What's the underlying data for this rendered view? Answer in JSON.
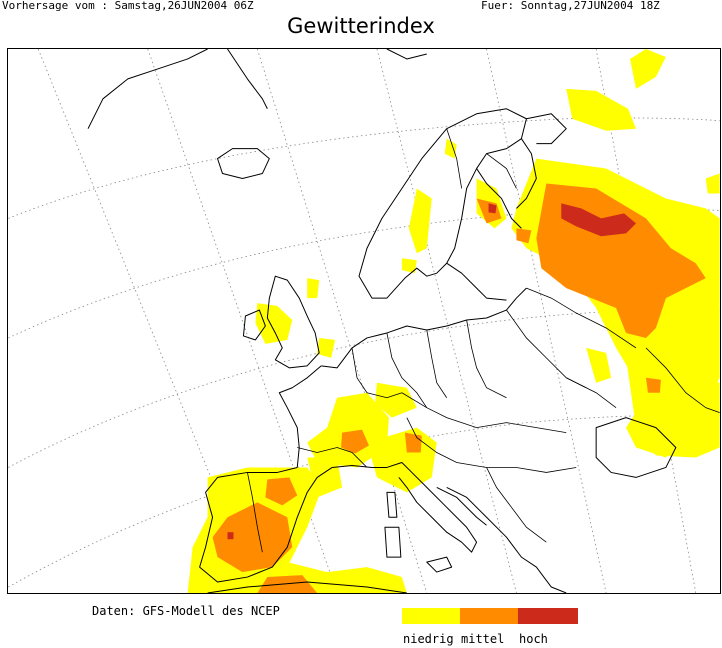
{
  "header": {
    "forecast_from": "Vorhersage vom : Samstag,26JUN2004 06Z",
    "valid_for": "Fuer: Sonntag,27JUN2004 18Z"
  },
  "title": "Gewitterindex",
  "source": "Daten: GFS-Modell des NCEP",
  "legend": [
    {
      "label": "niedrig",
      "color": "#ffff00"
    },
    {
      "label": "mittel",
      "color": "#ff8c00"
    },
    {
      "label": "hoch",
      "color": "#cc2a1a"
    }
  ],
  "map": {
    "region": "Europe",
    "line_color": "#000000",
    "grid_color": "#888888"
  }
}
